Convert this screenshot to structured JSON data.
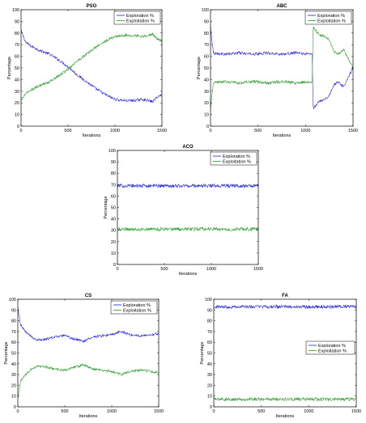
{
  "colors": {
    "exploration": "#1a1ae6",
    "exploitation": "#1f9a1f"
  },
  "chart_data": [
    {
      "type": "line",
      "title": "PSO",
      "xlabel": "Iterations",
      "ylabel": "Percentage",
      "xlim": [
        0,
        1500
      ],
      "ylim": [
        0,
        100
      ],
      "xticks": [
        0,
        500,
        1000,
        1500
      ],
      "yticks": [
        0,
        10,
        20,
        30,
        40,
        50,
        60,
        70,
        80,
        90,
        100
      ],
      "legend": "top-right",
      "x": [
        0,
        50,
        100,
        200,
        300,
        400,
        500,
        600,
        700,
        800,
        900,
        1000,
        1100,
        1200,
        1300,
        1400,
        1450,
        1500
      ],
      "series": [
        {
          "name": "Exploration %",
          "values": [
            82,
            72,
            69,
            65,
            62,
            57,
            51,
            44,
            38,
            32,
            27,
            23,
            22,
            22,
            23,
            21,
            25,
            27
          ]
        },
        {
          "name": "Exploitation %",
          "values": [
            22,
            28,
            31,
            35,
            38,
            43,
            49,
            56,
            62,
            68,
            73,
            77,
            78,
            78,
            77,
            79,
            75,
            73
          ]
        }
      ]
    },
    {
      "type": "line",
      "title": "ABC",
      "xlabel": "Iterations",
      "ylabel": "Percentage",
      "xlim": [
        0,
        1500
      ],
      "ylim": [
        0,
        100
      ],
      "xticks": [
        0,
        500,
        1000,
        1500
      ],
      "yticks": [
        0,
        10,
        20,
        30,
        40,
        50,
        60,
        70,
        80,
        90,
        100
      ],
      "legend": "top-right",
      "x": [
        0,
        30,
        100,
        200,
        300,
        400,
        500,
        600,
        700,
        800,
        900,
        1000,
        1070,
        1080,
        1100,
        1150,
        1200,
        1250,
        1300,
        1350,
        1400,
        1450,
        1500
      ],
      "series": [
        {
          "name": "Exploration %",
          "values": [
            85,
            63,
            62,
            62,
            63,
            62,
            62,
            63,
            62,
            62,
            63,
            62,
            62,
            15,
            17,
            22,
            23,
            26,
            36,
            38,
            34,
            42,
            50
          ]
        },
        {
          "name": "Exploitation %",
          "values": [
            15,
            37,
            38,
            38,
            37,
            38,
            38,
            37,
            38,
            38,
            37,
            38,
            38,
            85,
            83,
            78,
            77,
            74,
            64,
            62,
            66,
            58,
            50
          ]
        }
      ]
    },
    {
      "type": "line",
      "title": "ACO",
      "xlabel": "Iterations",
      "ylabel": "Percentage",
      "xlim": [
        0,
        1500
      ],
      "ylim": [
        0,
        100
      ],
      "xticks": [
        0,
        500,
        1000,
        1500
      ],
      "yticks": [
        0,
        10,
        20,
        30,
        40,
        50,
        60,
        70,
        80,
        90,
        100
      ],
      "legend": "top-right",
      "x": [
        0,
        250,
        500,
        750,
        1000,
        1250,
        1500
      ],
      "series": [
        {
          "name": "Exploration %",
          "values": [
            69,
            69,
            69,
            69,
            69,
            69,
            69
          ]
        },
        {
          "name": "Exploitation %",
          "values": [
            31,
            31,
            31,
            31,
            31,
            31,
            31
          ]
        }
      ]
    },
    {
      "type": "line",
      "title": "CS",
      "xlabel": "Iterations",
      "ylabel": "Percentage",
      "xlim": [
        0,
        1500
      ],
      "ylim": [
        0,
        100
      ],
      "xticks": [
        0,
        500,
        1000,
        1500
      ],
      "yticks": [
        0,
        10,
        20,
        30,
        40,
        50,
        60,
        70,
        80,
        90,
        100
      ],
      "legend": "top-right",
      "x": [
        0,
        30,
        100,
        200,
        300,
        400,
        500,
        600,
        700,
        800,
        900,
        1000,
        1100,
        1200,
        1300,
        1400,
        1500
      ],
      "series": [
        {
          "name": "Exploration %",
          "values": [
            92,
            76,
            68,
            62,
            63,
            65,
            66,
            63,
            61,
            65,
            66,
            67,
            70,
            67,
            66,
            67,
            68
          ]
        },
        {
          "name": "Exploitation %",
          "values": [
            8,
            24,
            32,
            38,
            37,
            35,
            34,
            37,
            39,
            35,
            34,
            33,
            30,
            33,
            34,
            33,
            32
          ]
        }
      ]
    },
    {
      "type": "line",
      "title": "FA",
      "xlabel": "Iterations",
      "ylabel": "Percentage",
      "xlim": [
        0,
        1500
      ],
      "ylim": [
        0,
        100
      ],
      "xticks": [
        0,
        500,
        1000,
        1500
      ],
      "yticks": [
        0,
        10,
        20,
        30,
        40,
        50,
        60,
        70,
        80,
        90,
        100
      ],
      "legend": "middle-right",
      "x": [
        0,
        250,
        500,
        750,
        1000,
        1250,
        1500
      ],
      "series": [
        {
          "name": "Exploration %",
          "values": [
            93,
            93,
            93,
            93,
            93,
            93,
            93
          ]
        },
        {
          "name": "Exploitation %",
          "values": [
            7,
            7,
            7,
            7,
            7,
            7,
            7
          ]
        }
      ]
    }
  ]
}
